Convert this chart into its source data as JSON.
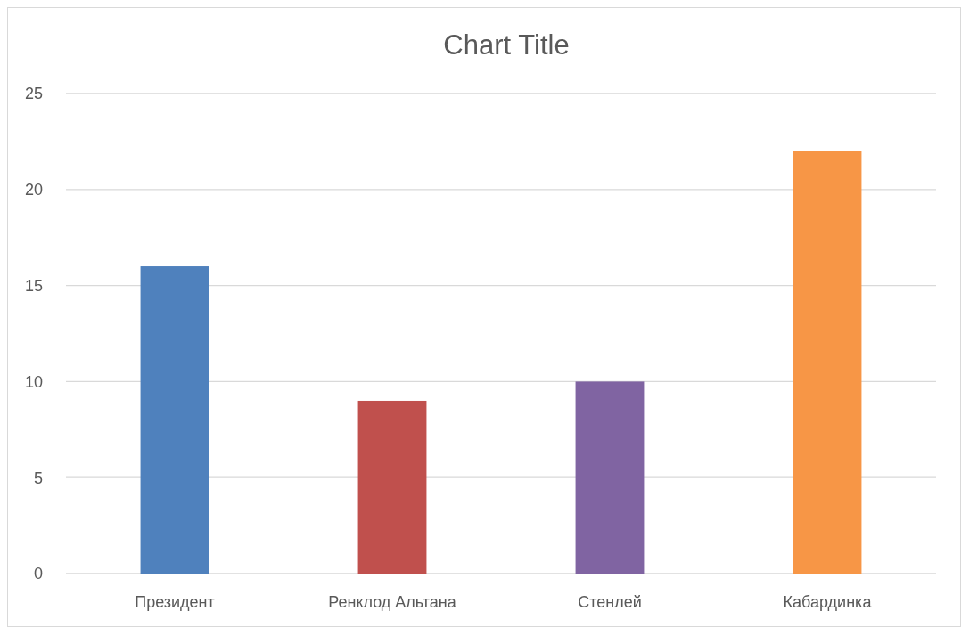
{
  "chart_data": {
    "type": "bar",
    "title": "Chart Title",
    "categories": [
      "Президент",
      "Ренклод Альтана",
      "Стенлей",
      "Кабардинка"
    ],
    "values": [
      16,
      9,
      10,
      22
    ],
    "colors": [
      "#4f81bd",
      "#c0504d",
      "#8064a2",
      "#f79646"
    ],
    "ylim": [
      0,
      25
    ],
    "yticks": [
      0,
      5,
      10,
      15,
      20,
      25
    ],
    "grid": "y"
  }
}
